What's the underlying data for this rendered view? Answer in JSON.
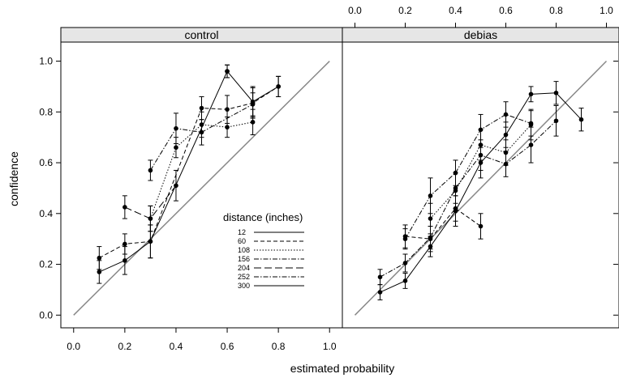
{
  "chart_data": {
    "type": "line",
    "xlabel": "estimated probability",
    "ylabel": "confidence",
    "xlim": [
      -0.05,
      1.05
    ],
    "ylim": [
      -0.05,
      1.075
    ],
    "x_ticks": [
      "0.0",
      "0.2",
      "0.4",
      "0.6",
      "0.8",
      "1.0"
    ],
    "y_ticks": [
      "0.0",
      "0.2",
      "0.4",
      "0.6",
      "0.8",
      "1.0"
    ],
    "x_tick_values": [
      0,
      0.2,
      0.4,
      0.6,
      0.8,
      1.0
    ],
    "y_tick_values": [
      0,
      0.2,
      0.4,
      0.6,
      0.8,
      1.0
    ],
    "grid": false,
    "reference_line": "identity",
    "legend": {
      "title": "distance (inches)",
      "placement": "inside control panel, lower right",
      "entries": [
        "12",
        "60",
        "108",
        "156",
        "204",
        "252",
        "300"
      ]
    },
    "panels": [
      {
        "title": "control",
        "series": [
          {
            "key": "12",
            "dash": "none",
            "points": [
              [
                0.6,
                0.96,
                0.025
              ]
            ]
          },
          {
            "key": "60",
            "dash": "dashed",
            "points": [
              [
                0.1,
                0.225,
                0.045
              ],
              [
                0.2,
                0.28,
                0.04
              ],
              [
                0.3,
                0.29,
                0.065
              ],
              [
                0.5,
                0.815,
                0.045
              ],
              [
                0.6,
                0.81,
                0.055
              ],
              [
                0.7,
                0.835,
                0.06
              ],
              [
                0.8,
                0.9,
                0.04
              ]
            ]
          },
          {
            "key": "108",
            "dash": "dotted",
            "points": [
              [
                0.3,
                0.38,
                0.05
              ],
              [
                0.4,
                0.66,
                0.04
              ],
              [
                0.5,
                0.75,
                0.05
              ],
              [
                0.6,
                0.74,
                0.04
              ],
              [
                0.7,
                0.76,
                0.05
              ]
            ]
          },
          {
            "key": "156",
            "dash": "dashdot",
            "points": [
              [
                0.3,
                0.57,
                0.04
              ],
              [
                0.4,
                0.735,
                0.06
              ],
              [
                0.5,
                0.72,
                0.05
              ],
              [
                0.7,
                0.83,
                0.045
              ]
            ]
          },
          {
            "key": "204",
            "dash": "longdash",
            "points": [
              [
                0.2,
                0.425,
                0.045
              ],
              [
                0.3,
                0.38,
                0.05
              ],
              [
                0.4,
                0.51,
                0.06
              ]
            ]
          },
          {
            "key": "300",
            "dash": "none",
            "points": [
              [
                0.1,
                0.17,
                0.045
              ],
              [
                0.2,
                0.215,
                0.055
              ],
              [
                0.3,
                0.29,
                0.065
              ],
              [
                0.6,
                0.96,
                0.025
              ],
              [
                0.7,
                0.84,
                0.06
              ],
              [
                0.8,
                0.9,
                0.04
              ]
            ]
          }
        ]
      },
      {
        "title": "debias",
        "series": [
          {
            "key": "12",
            "dash": "none",
            "points": [
              [
                0.1,
                0.09,
                0.03
              ],
              [
                0.2,
                0.135,
                0.03
              ],
              [
                0.3,
                0.27,
                0.04
              ],
              [
                0.4,
                0.41,
                0.06
              ],
              [
                0.5,
                0.6,
                0.06
              ],
              [
                0.6,
                0.71,
                0.05
              ],
              [
                0.7,
                0.87,
                0.03
              ],
              [
                0.8,
                0.875,
                0.045
              ],
              [
                0.9,
                0.77,
                0.045
              ]
            ]
          },
          {
            "key": "60",
            "dash": "dashed",
            "points": [
              [
                0.2,
                0.31,
                0.045
              ],
              [
                0.3,
                0.3,
                0.05
              ],
              [
                0.4,
                0.42,
                0.05
              ],
              [
                0.5,
                0.35,
                0.05
              ]
            ]
          },
          {
            "key": "108",
            "dash": "dotted",
            "points": [
              [
                0.3,
                0.38,
                0.06
              ],
              [
                0.4,
                0.49,
                0.07
              ],
              [
                0.5,
                0.67,
                0.06
              ],
              [
                0.6,
                0.64,
                0.05
              ],
              [
                0.7,
                0.75,
                0.06
              ]
            ]
          },
          {
            "key": "156",
            "dash": "dashdot",
            "points": [
              [
                0.2,
                0.3,
                0.04
              ],
              [
                0.3,
                0.47,
                0.07
              ],
              [
                0.4,
                0.56,
                0.05
              ],
              [
                0.5,
                0.73,
                0.06
              ],
              [
                0.6,
                0.79,
                0.05
              ],
              [
                0.7,
                0.755,
                0.05
              ]
            ]
          },
          {
            "key": "252",
            "dash": "dashdot",
            "points": [
              [
                0.1,
                0.15,
                0.03
              ],
              [
                0.2,
                0.205,
                0.035
              ],
              [
                0.3,
                0.305,
                0.045
              ],
              [
                0.4,
                0.5,
                0.06
              ],
              [
                0.5,
                0.63,
                0.06
              ],
              [
                0.6,
                0.595,
                0.05
              ],
              [
                0.7,
                0.67,
                0.07
              ],
              [
                0.8,
                0.765,
                0.06
              ]
            ]
          }
        ]
      }
    ]
  }
}
